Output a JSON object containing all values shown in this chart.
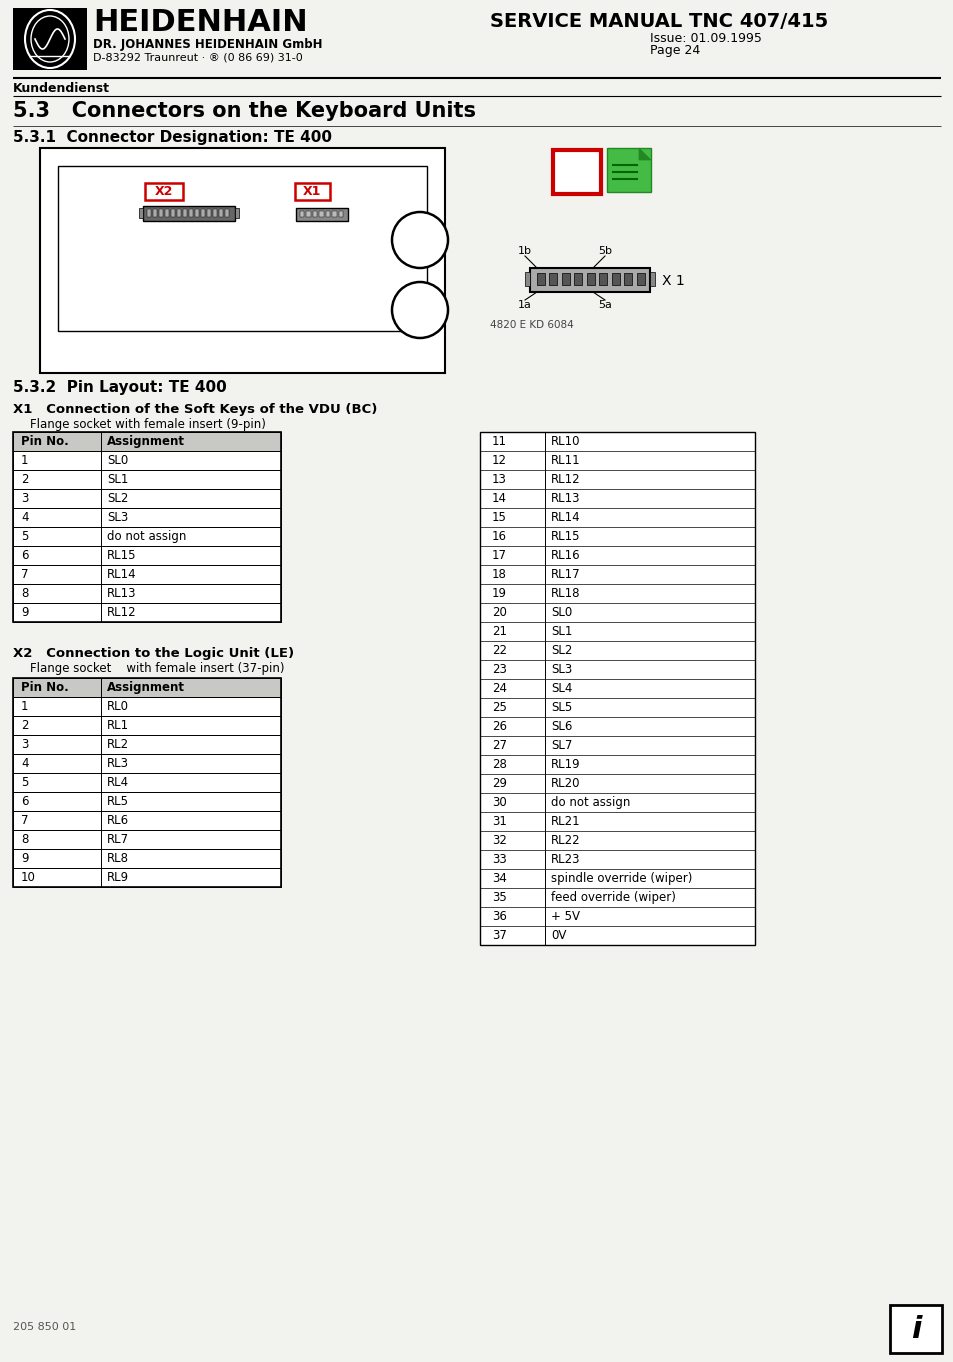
{
  "bg_color": "#f2f2ee",
  "company_name": "HEIDENHAIN",
  "company_sub": "DR. JOHANNES HEIDENHAIN GmbH",
  "company_addr": "D-83292 Traunreut · ® (0 86 69) 31-0",
  "kundendienst": "Kundendienst",
  "title_main": "SERVICE MANUAL TNC 407/415",
  "title_issue": "Issue: 01.09.1995",
  "title_page": "Page 24",
  "section_title": "5.3   Connectors on the Keyboard Units",
  "sub_title1": "5.3.1  Connector Designation: TE 400",
  "sub_title2": "5.3.2  Pin Layout: TE 400",
  "x1_header": "X1   Connection of the Soft Keys of the VDU (BC)",
  "x1_sub": "Flange socket with female insert (9-pin)",
  "x2_header": "X2   Connection to the Logic Unit (LE)",
  "x2_sub": "Flange socket    with female insert (37-pin)",
  "x1_left": [
    [
      "Pin No.",
      "Assignment"
    ],
    [
      "1",
      "SL0"
    ],
    [
      "2",
      "SL1"
    ],
    [
      "3",
      "SL2"
    ],
    [
      "4",
      "SL3"
    ],
    [
      "5",
      "do not assign"
    ],
    [
      "6",
      "RL15"
    ],
    [
      "7",
      "RL14"
    ],
    [
      "8",
      "RL13"
    ],
    [
      "9",
      "RL12"
    ]
  ],
  "x1_right": [
    [
      "11",
      "RL10"
    ],
    [
      "12",
      "RL11"
    ],
    [
      "13",
      "RL12"
    ],
    [
      "14",
      "RL13"
    ],
    [
      "15",
      "RL14"
    ],
    [
      "16",
      "RL15"
    ],
    [
      "17",
      "RL16"
    ],
    [
      "18",
      "RL17"
    ],
    [
      "19",
      "RL18"
    ],
    [
      "20",
      "SL0"
    ],
    [
      "21",
      "SL1"
    ],
    [
      "22",
      "SL2"
    ],
    [
      "23",
      "SL3"
    ],
    [
      "24",
      "SL4"
    ],
    [
      "25",
      "SL5"
    ],
    [
      "26",
      "SL6"
    ],
    [
      "27",
      "SL7"
    ],
    [
      "28",
      "RL19"
    ],
    [
      "29",
      "RL20"
    ],
    [
      "30",
      "do not assign"
    ],
    [
      "31",
      "RL21"
    ],
    [
      "32",
      "RL22"
    ],
    [
      "33",
      "RL23"
    ],
    [
      "34",
      "spindle override (wiper)"
    ],
    [
      "35",
      "feed override (wiper)"
    ],
    [
      "36",
      "+ 5V"
    ],
    [
      "37",
      "0V"
    ]
  ],
  "x2_left": [
    [
      "Pin No.",
      "Assignment"
    ],
    [
      "1",
      "RL0"
    ],
    [
      "2",
      "RL1"
    ],
    [
      "3",
      "RL2"
    ],
    [
      "4",
      "RL3"
    ],
    [
      "5",
      "RL4"
    ],
    [
      "6",
      "RL5"
    ],
    [
      "7",
      "RL6"
    ],
    [
      "8",
      "RL7"
    ],
    [
      "9",
      "RL8"
    ],
    [
      "10",
      "RL9"
    ]
  ],
  "fig_caption": "4820 E KD 6084",
  "footer_code": "205 850 01"
}
